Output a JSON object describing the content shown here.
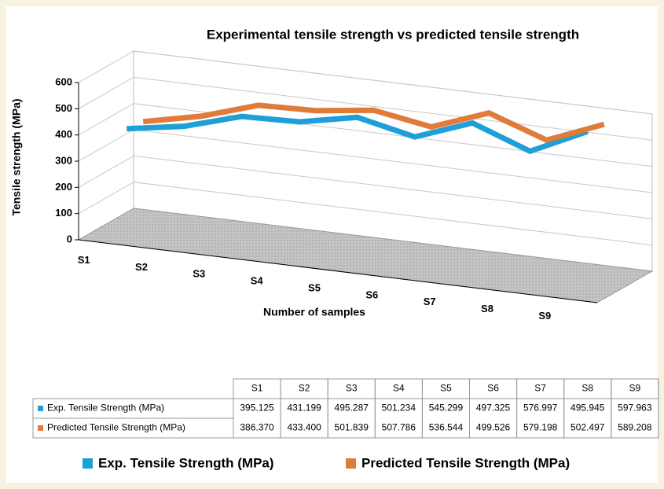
{
  "chart_data": {
    "type": "line",
    "title": "Experimental tensile strength vs predicted tensile strength",
    "x_label": "Number of samples",
    "y_label": "Tensile strength (MPa)",
    "categories": [
      "S1",
      "S2",
      "S3",
      "S4",
      "S5",
      "S6",
      "S7",
      "S8",
      "S9"
    ],
    "series": [
      {
        "name": "Exp. Tensile Strength (MPa)",
        "color": "#1e9fd8",
        "values": [
          395.125,
          431.199,
          495.287,
          501.234,
          545.299,
          497.325,
          576.997,
          495.945,
          597.963
        ]
      },
      {
        "name": "Predicted Tensile Strength (MPa)",
        "color": "#e07b39",
        "values": [
          386.37,
          433.4,
          501.839,
          507.786,
          536.544,
          499.526,
          579.198,
          502.497,
          589.208
        ],
        "value_labels": [
          "386.370",
          "433.400",
          "501.839",
          "507.786",
          "536.544",
          "499.526",
          "579.198",
          "502.497",
          "589.208"
        ]
      }
    ],
    "ylim": [
      0,
      600
    ],
    "yticks": [
      0,
      100,
      200,
      300,
      400,
      500,
      600
    ],
    "grid": true
  }
}
